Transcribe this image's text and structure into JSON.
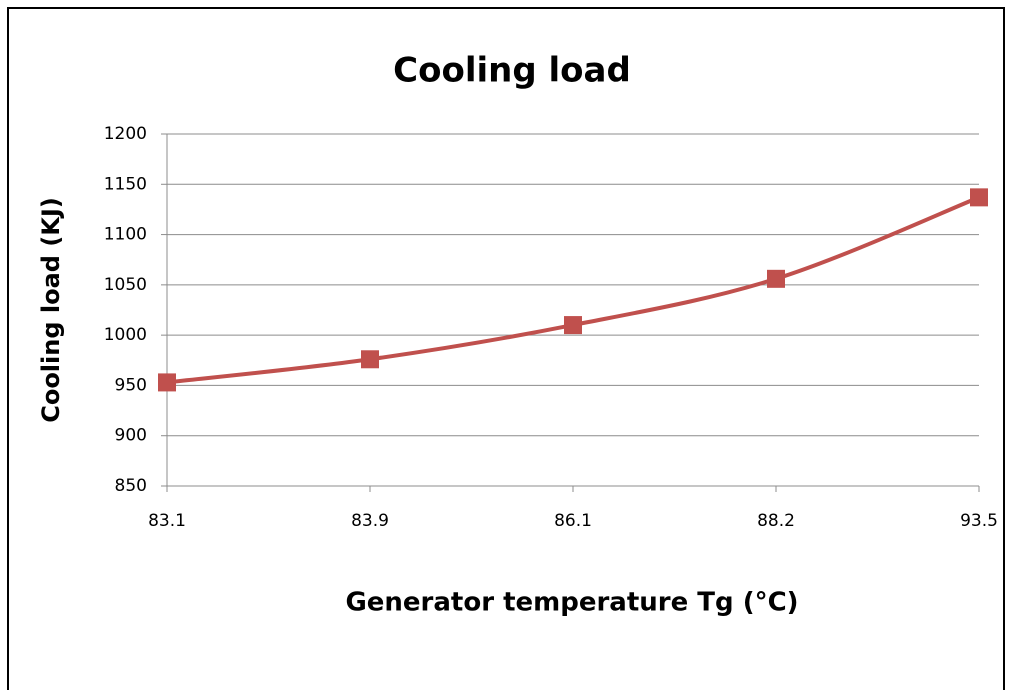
{
  "chart_data": {
    "type": "line",
    "title": "Cooling load",
    "x_label": "Generator temperature Tg  (°C)",
    "y_label": "Cooling  load  (KJ)",
    "categories": [
      "83.1",
      "83.9",
      "86.1",
      "88.2",
      "93.5"
    ],
    "values": [
      953,
      976,
      1010,
      1056,
      1137
    ],
    "color": "#c0504d",
    "smooth": true,
    "ylim": [
      850,
      1200
    ],
    "yticks": [
      850,
      900,
      950,
      1000,
      1050,
      1100,
      1150,
      1200
    ],
    "grid": true
  }
}
